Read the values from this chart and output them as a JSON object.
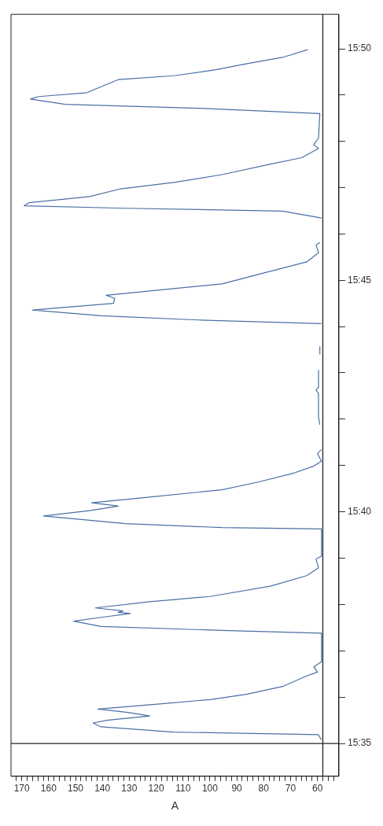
{
  "chart_data": {
    "type": "line",
    "xlabel": "A",
    "color": "#4a6fa5",
    "marker": "none",
    "line_style": "solid",
    "grid": false,
    "legend": false,
    "ylim": [
      15.5715,
      15.8457
    ],
    "xlim": [
      174,
      52
    ],
    "yticks": [
      {
        "value": 15.5833,
        "label": "15:35"
      },
      {
        "value": 15.6,
        "label": null
      },
      {
        "value": 15.6167,
        "label": null
      },
      {
        "value": 15.6333,
        "label": null
      },
      {
        "value": 15.65,
        "label": null
      },
      {
        "value": 15.6667,
        "label": "15:40"
      },
      {
        "value": 15.6833,
        "label": null
      },
      {
        "value": 15.7,
        "label": null
      },
      {
        "value": 15.7167,
        "label": null
      },
      {
        "value": 15.7333,
        "label": null
      },
      {
        "value": 15.75,
        "label": "15:45"
      },
      {
        "value": 15.7667,
        "label": null
      },
      {
        "value": 15.7833,
        "label": null
      },
      {
        "value": 15.8,
        "label": null
      },
      {
        "value": 15.8167,
        "label": null
      },
      {
        "value": 15.8333,
        "label": "15:50"
      }
    ],
    "xticks": [
      {
        "value": 54,
        "label": null
      },
      {
        "value": 56,
        "label": null
      },
      {
        "value": 58,
        "label": null
      },
      60,
      {
        "value": 62,
        "label": null
      },
      {
        "value": 64,
        "label": null
      },
      {
        "value": 66,
        "label": null
      },
      {
        "value": 68,
        "label": null
      },
      70,
      {
        "value": 72,
        "label": null
      },
      {
        "value": 74,
        "label": null
      },
      {
        "value": 76,
        "label": null
      },
      {
        "value": 78,
        "label": null
      },
      80,
      {
        "value": 82,
        "label": null
      },
      {
        "value": 84,
        "label": null
      },
      {
        "value": 86,
        "label": null
      },
      {
        "value": 88,
        "label": null
      },
      90,
      {
        "value": 92,
        "label": null
      },
      {
        "value": 94,
        "label": null
      },
      {
        "value": 96,
        "label": null
      },
      {
        "value": 98,
        "label": null
      },
      100,
      {
        "value": 102,
        "label": null
      },
      {
        "value": 104,
        "label": null
      },
      {
        "value": 106,
        "label": null
      },
      {
        "value": 108,
        "label": null
      },
      110,
      {
        "value": 112,
        "label": null
      },
      {
        "value": 114,
        "label": null
      },
      {
        "value": 116,
        "label": null
      },
      {
        "value": 118,
        "label": null
      },
      120,
      {
        "value": 122,
        "label": null
      },
      {
        "value": 124,
        "label": null
      },
      {
        "value": 126,
        "label": null
      },
      {
        "value": 128,
        "label": null
      },
      130,
      {
        "value": 132,
        "label": null
      },
      {
        "value": 134,
        "label": null
      },
      {
        "value": 136,
        "label": null
      },
      {
        "value": 138,
        "label": null
      },
      140,
      {
        "value": 142,
        "label": null
      },
      {
        "value": 144,
        "label": null
      },
      {
        "value": 146,
        "label": null
      },
      {
        "value": 148,
        "label": null
      },
      150,
      {
        "value": 152,
        "label": null
      },
      {
        "value": 154,
        "label": null
      },
      {
        "value": 156,
        "label": null
      },
      {
        "value": 158,
        "label": null
      },
      160,
      {
        "value": 162,
        "label": null
      },
      {
        "value": 164,
        "label": null
      },
      {
        "value": 166,
        "label": null
      },
      {
        "value": 168,
        "label": null
      },
      170,
      {
        "value": 172,
        "label": null
      }
    ],
    "ref_lines": [
      {
        "axis": "y",
        "value": 15.5833,
        "color": "#222222"
      },
      {
        "axis": "x",
        "value": 58,
        "color": "#222222"
      }
    ],
    "values": [
      15.5846,
      15.5865,
      15.5874,
      15.5893,
      15.5907,
      15.5917,
      15.5932,
      15.5945,
      15.5957,
      15.5976,
      15.5991,
      15.601,
      15.6038,
      15.6076,
      15.609,
      15.6109,
      15.6127,
      15.623,
      15.624,
      15.6254,
      15.6273,
      15.6287,
      15.6301,
      15.6305,
      15.631,
      15.6321,
      15.6343,
      15.6362,
      15.6399,
      15.6437,
      15.6465,
      15.6497,
      15.6507,
      15.6605,
      15.661,
      15.6624,
      15.6652,
      15.6671,
      15.6687,
      15.6691,
      15.6699,
      15.672,
      15.6746,
      15.6774,
      15.6807,
      15.6831,
      15.6849,
      15.6877,
      15.6891,
      null,
      15.698,
      15.7008,
      15.7093,
      15.7104,
      15.7115,
      15.7177,
      null,
      15.7233,
      15.7262,
      null,
      15.7344,
      15.7357,
      15.7372,
      15.7393,
      15.7417,
      15.7435,
      15.7446,
      15.7487,
      15.7519,
      15.7566,
      15.7599,
      15.7627,
      15.7636,
      null,
      15.7724,
      15.7749,
      15.7759,
      15.7768,
      15.7779,
      15.7801,
      15.7829,
      15.7852,
      15.788,
      15.7918,
      15.7941,
      15.7974,
      15.7988,
      15.8011,
      15.81,
      15.8119,
      15.8133,
      15.8152,
      15.8161,
      15.8175,
      15.8222,
      15.8236,
      15.8257,
      15.8279,
      15.8302,
      15.833
    ],
    "x": [
      58.5,
      59.7,
      113.5,
      140.5,
      143.5,
      137.7,
      122.4,
      130.5,
      141.7,
      117.9,
      100,
      86.5,
      73,
      64,
      60,
      61.3,
      58.5,
      58.5,
      95.5,
      140.4,
      150.7,
      140.4,
      129.6,
      134.1,
      132.3,
      142.6,
      122.4,
      100,
      77.5,
      64,
      59.6,
      60.5,
      58.5,
      58.5,
      95.5,
      131.4,
      161.9,
      144.8,
      134.1,
      136.8,
      144,
      122.4,
      95.5,
      82,
      68.5,
      61.4,
      58.5,
      60,
      58.5,
      null,
      59.1,
      59.6,
      59.6,
      60.5,
      59.6,
      59.6,
      null,
      59.1,
      59.1,
      null,
      58.5,
      104.4,
      140.4,
      166,
      135.9,
      135.4,
      138.6,
      95.5,
      82.9,
      64,
      59.6,
      60.5,
      59.1,
      null,
      58.5,
      73,
      131.4,
      169.1,
      167.3,
      144.8,
      133.2,
      113.4,
      95.5,
      77.5,
      65.9,
      59.6,
      61.4,
      59.6,
      59.1,
      104.4,
      153.8,
      166.8,
      163.7,
      145.8,
      134.1,
      113.4,
      98.2,
      86.5,
      73,
      63.6
    ]
  }
}
